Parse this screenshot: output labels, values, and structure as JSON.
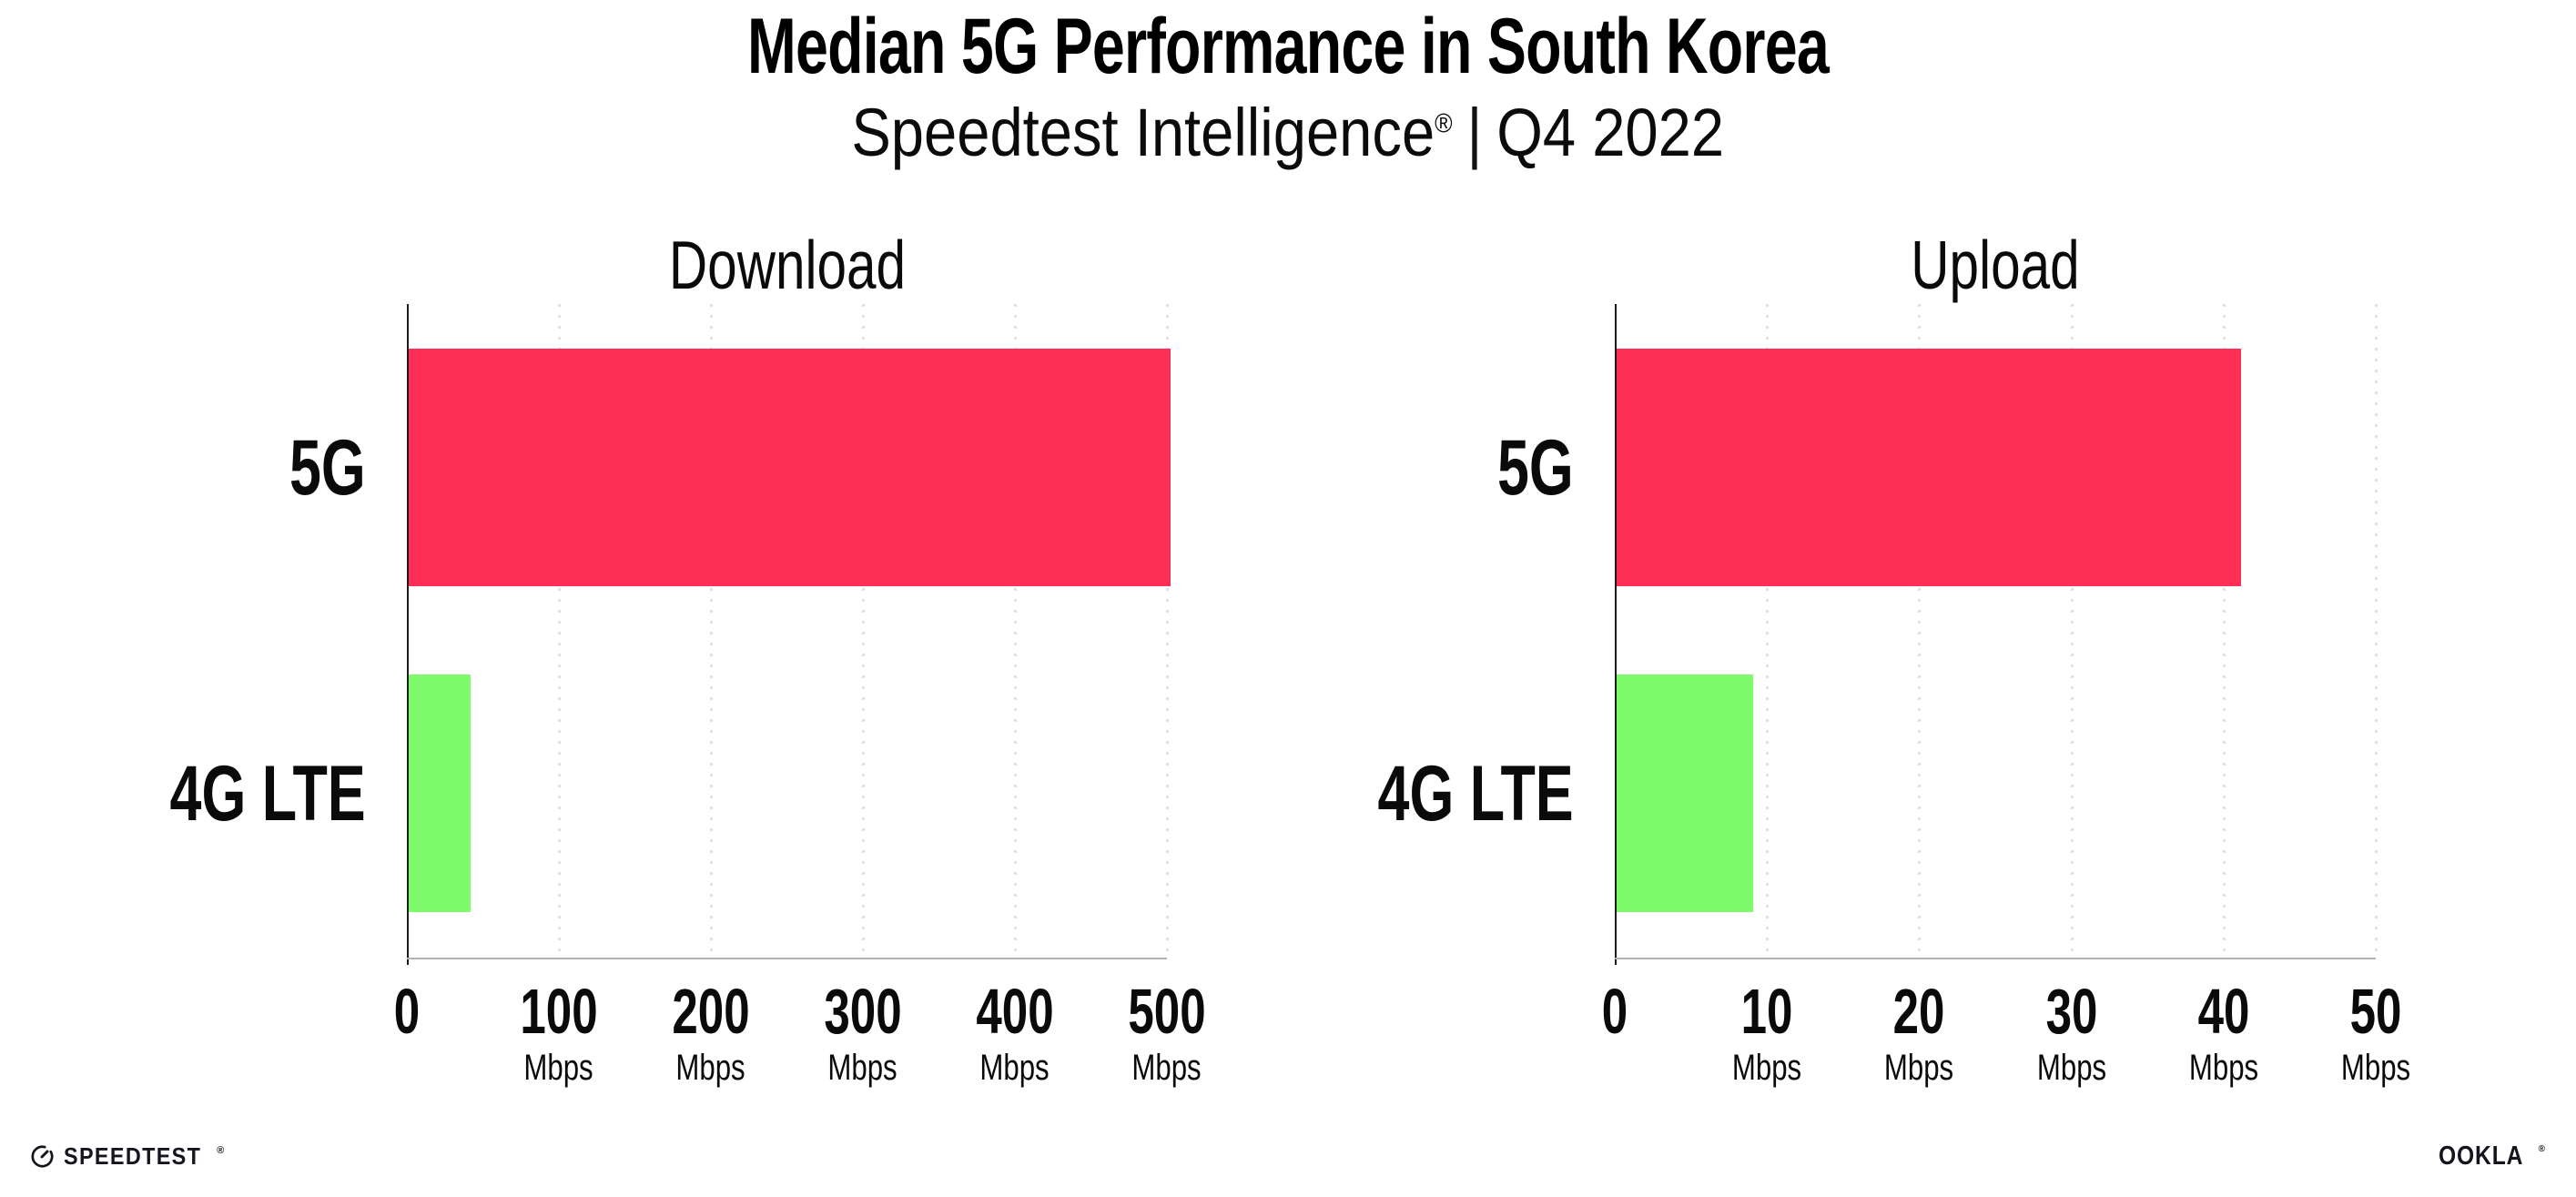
{
  "title": "Median 5G Performance in South Korea",
  "subtitle": {
    "brand": "Speedtest Intelligence",
    "reg_mark": "®",
    "separator": "|",
    "period": "Q4 2022"
  },
  "colors": {
    "bar_5g": "#fd2f57",
    "bar_4g": "#7efa6c",
    "gridline": "#dee0ee",
    "y_axis": "#1a1a1a",
    "x_axis": "#b3b3b3",
    "text": "#000000"
  },
  "chart_data": [
    {
      "type": "bar",
      "orientation": "horizontal",
      "title": "Download",
      "categories": [
        "5G",
        "4G LTE"
      ],
      "values": [
        501,
        41
      ],
      "unit": "Mbps",
      "xlim": [
        0,
        500
      ],
      "xticks": [
        0,
        100,
        200,
        300,
        400,
        500
      ],
      "grid": "vertical dotted",
      "legend": "none",
      "bar_colors": [
        "#fd2f57",
        "#7efa6c"
      ]
    },
    {
      "type": "bar",
      "orientation": "horizontal",
      "title": "Upload",
      "categories": [
        "5G",
        "4G LTE"
      ],
      "values": [
        41,
        9
      ],
      "unit": "Mbps",
      "xlim": [
        0,
        50
      ],
      "xticks": [
        0,
        10,
        20,
        30,
        40,
        50
      ],
      "grid": "vertical dotted",
      "legend": "none",
      "bar_colors": [
        "#fd2f57",
        "#7efa6c"
      ]
    }
  ],
  "footer": {
    "speedtest_text": "SPEEDTEST",
    "speedtest_mark": "®",
    "ookla_text": "OOKLA",
    "ookla_mark": "®"
  }
}
